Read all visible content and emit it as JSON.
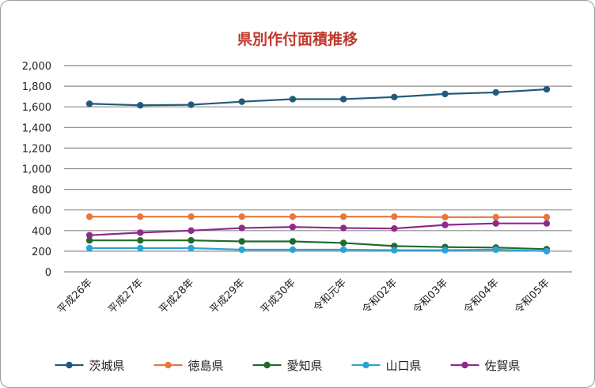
{
  "chart_data": {
    "type": "line",
    "title": "県別作付面積推移",
    "xlabel": "",
    "ylabel": "",
    "ylim": [
      0,
      2000
    ],
    "yticks": [
      "0",
      "200",
      "400",
      "600",
      "800",
      "1,000",
      "1,200",
      "1,400",
      "1,600",
      "1,800",
      "2,000"
    ],
    "grid": true,
    "legend_position": "bottom",
    "categories": [
      "平成26年",
      "平成27年",
      "平成28年",
      "平成29年",
      "平成30年",
      "令和元年",
      "令和02年",
      "令和03年",
      "令和04年",
      "令和05年"
    ],
    "series": [
      {
        "name": "茨城県",
        "color": "#215a7a",
        "values": [
          1630,
          1615,
          1620,
          1650,
          1675,
          1675,
          1695,
          1725,
          1740,
          1770
        ]
      },
      {
        "name": "徳島県",
        "color": "#e8773a",
        "values": [
          535,
          535,
          535,
          535,
          535,
          535,
          535,
          530,
          530,
          530
        ]
      },
      {
        "name": "愛知県",
        "color": "#1f6b2e",
        "values": [
          305,
          305,
          305,
          295,
          295,
          280,
          250,
          240,
          235,
          220
        ]
      },
      {
        "name": "山口県",
        "color": "#2aa3d8",
        "values": [
          230,
          230,
          230,
          215,
          215,
          215,
          210,
          210,
          215,
          200
        ]
      },
      {
        "name": "佐賀県",
        "color": "#8e2a8c",
        "values": [
          355,
          380,
          400,
          425,
          435,
          425,
          420,
          455,
          470,
          470
        ]
      }
    ]
  }
}
